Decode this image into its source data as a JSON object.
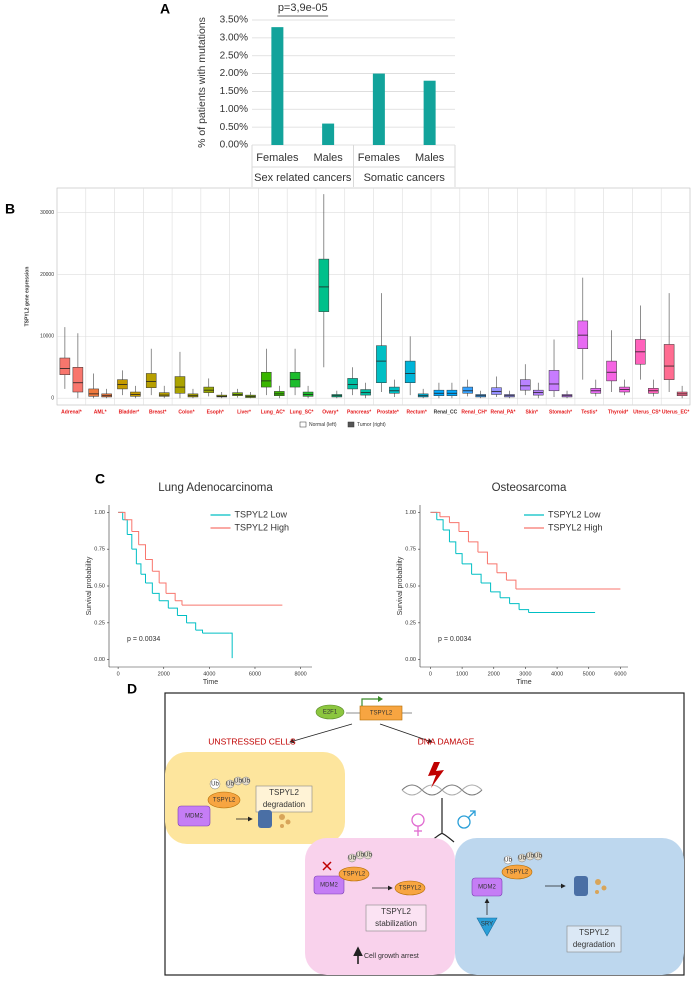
{
  "chart_data": [
    {
      "type": "bar",
      "panel": "A",
      "y_label": "% of patients with mutations",
      "categories": [
        "Females",
        "Males",
        "Females",
        "Males"
      ],
      "groups": [
        "Sex related cancers",
        "Somatic cancers"
      ],
      "values": [
        3.3,
        0.6,
        2.0,
        1.8
      ],
      "color": "#12a39b",
      "annotation": "p=3,9e-05",
      "ylim": [
        0,
        3.5
      ],
      "yticks": [
        {
          "value": 0,
          "label": "0.00%"
        },
        {
          "value": 0.5,
          "label": "0.50%"
        },
        {
          "value": 1,
          "label": "1.00%"
        },
        {
          "value": 1.5,
          "label": "1.50%"
        },
        {
          "value": 2,
          "label": "2.00%"
        },
        {
          "value": 2.5,
          "label": "2.50%"
        },
        {
          "value": 3,
          "label": "3.00%"
        },
        {
          "value": 3.5,
          "label": "3.50%"
        }
      ],
      "grid": true
    },
    {
      "type": "box",
      "panel": "B",
      "y_label": "TSPYL2 gene expression",
      "categories": [
        "Adrenal*",
        "AML*",
        "Bladder*",
        "Breast*",
        "Colon*",
        "Esoph*",
        "Liver*",
        "Lung_AC*",
        "Lung_SC*",
        "Ovary*",
        "Pancreas*",
        "Prostate*",
        "Rectum*",
        "Renal_CC",
        "Renal_CH*",
        "Renal_PA*",
        "Skin*",
        "Stomach*",
        "Testis*",
        "Thyroid*",
        "Uterus_CS*",
        "Uterus_EC*"
      ],
      "colors": [
        "#f8766d",
        "#f07b3f",
        "#c49a00",
        "#b79f00",
        "#aba300",
        "#99a800",
        "#7cae00",
        "#39b600",
        "#1cbd2c",
        "#00c08b",
        "#00bfa3",
        "#00bfc4",
        "#00b4d8",
        "#00a9ff",
        "#35a2ff",
        "#9590ff",
        "#b983ff",
        "#c77cff",
        "#e76bf3",
        "#f564e3",
        "#ff62bc",
        "#ff6c91"
      ],
      "label_colors": [
        "#e41a1c",
        "#e41a1c",
        "#e41a1c",
        "#e41a1c",
        "#e41a1c",
        "#e41a1c",
        "#e41a1c",
        "#e41a1c",
        "#e41a1c",
        "#e41a1c",
        "#e41a1c",
        "#e41a1c",
        "#e41a1c",
        "#333333",
        "#e41a1c",
        "#e41a1c",
        "#e41a1c",
        "#e41a1c",
        "#e41a1c",
        "#e41a1c",
        "#e41a1c",
        "#e41a1c"
      ],
      "series": [
        {
          "name": "Normal (left)",
          "values": [
            [
              1500,
              3800,
              4800,
              6500,
              11500
            ],
            [
              0,
              300,
              700,
              1500,
              4000
            ],
            [
              500,
              1500,
              2200,
              3000,
              4500
            ],
            [
              500,
              1700,
              2700,
              4000,
              8000
            ],
            [
              0,
              800,
              1800,
              3500,
              7500
            ],
            [
              300,
              900,
              1300,
              1800,
              3200
            ],
            [
              100,
              400,
              600,
              900,
              1500
            ],
            [
              500,
              1800,
              2800,
              4200,
              8000
            ],
            [
              500,
              1800,
              3000,
              4200,
              8000
            ],
            [
              5000,
              14000,
              18000,
              22500,
              33000
            ],
            [
              500,
              1500,
              2200,
              3200,
              5000
            ],
            [
              1000,
              2500,
              6000,
              8500,
              17000
            ],
            [
              500,
              2500,
              4000,
              6000,
              10000
            ],
            [
              0,
              400,
              800,
              1300,
              2500
            ],
            [
              300,
              800,
              1200,
              1800,
              3000
            ],
            [
              200,
              600,
              1100,
              1700,
              3500
            ],
            [
              500,
              1300,
              2000,
              3000,
              5500
            ],
            [
              200,
              1200,
              2300,
              4500,
              9500
            ],
            [
              3000,
              8000,
              10200,
              12500,
              19500
            ],
            [
              1000,
              2800,
              4200,
              6000,
              11000
            ],
            [
              3000,
              5500,
              7500,
              9500,
              15000
            ],
            [
              1000,
              3000,
              5200,
              8700,
              17000
            ]
          ]
        },
        {
          "name": "Tumor (right)",
          "values": [
            [
              0,
              1000,
              2500,
              5000,
              10500
            ],
            [
              0,
              200,
              400,
              700,
              1500
            ],
            [
              0,
              300,
              600,
              1000,
              2000
            ],
            [
              0,
              300,
              500,
              900,
              2000
            ],
            [
              0,
              200,
              400,
              700,
              1500
            ],
            [
              0,
              200,
              300,
              500,
              1000
            ],
            [
              0,
              100,
              300,
              500,
              1000
            ],
            [
              0,
              400,
              700,
              1100,
              2000
            ],
            [
              0,
              300,
              600,
              1000,
              2000
            ],
            [
              0,
              200,
              400,
              600,
              1200
            ],
            [
              0,
              500,
              900,
              1400,
              2500
            ],
            [
              200,
              800,
              1200,
              1800,
              3000
            ],
            [
              0,
              200,
              400,
              700,
              1500
            ],
            [
              0,
              400,
              800,
              1300,
              2500
            ],
            [
              0,
              200,
              400,
              600,
              1200
            ],
            [
              0,
              200,
              400,
              600,
              1200
            ],
            [
              0,
              500,
              900,
              1300,
              2500
            ],
            [
              0,
              200,
              400,
              600,
              1200
            ],
            [
              300,
              800,
              1200,
              1600,
              3000
            ],
            [
              500,
              1000,
              1400,
              1800,
              3000
            ],
            [
              300,
              800,
              1200,
              1600,
              3000
            ],
            [
              0,
              400,
              700,
              1000,
              2000
            ]
          ]
        }
      ],
      "ylim": [
        -1100,
        34000
      ],
      "yticks": [
        0,
        10000,
        20000,
        30000
      ],
      "grid": true
    },
    {
      "type": "survival",
      "panel": "C",
      "title": "Lung Adenocarcinoma",
      "x_label": "Time",
      "y_label": "Survival probability",
      "annotation": "p = 0.0034",
      "series": [
        {
          "name": "TSPYL2 Low",
          "color": "#00bfc4",
          "x": [
            0,
            200,
            400,
            600,
            800,
            1000,
            1200,
            1500,
            1800,
            2200,
            2600,
            3000,
            3400,
            3700,
            4900,
            5000
          ],
          "values": [
            1,
            0.95,
            0.85,
            0.75,
            0.65,
            0.58,
            0.52,
            0.45,
            0.4,
            0.35,
            0.3,
            0.25,
            0.2,
            0.18,
            0.18,
            0.01
          ]
        },
        {
          "name": "TSPYL2 High",
          "color": "#f8766d",
          "x": [
            0,
            300,
            600,
            900,
            1200,
            1500,
            1800,
            2100,
            2500,
            2800,
            7200
          ],
          "values": [
            1,
            0.95,
            0.87,
            0.78,
            0.68,
            0.6,
            0.52,
            0.45,
            0.4,
            0.37,
            0.37
          ]
        }
      ],
      "xlim": [
        -400,
        8500
      ],
      "xticks": [
        0,
        2000,
        4000,
        6000,
        8000
      ],
      "ylim": [
        -0.05,
        1.05
      ],
      "yticks": [
        {
          "value": 0,
          "label": "0.00"
        },
        {
          "value": 0.25,
          "label": "0.25"
        },
        {
          "value": 0.5,
          "label": "0.50"
        },
        {
          "value": 0.75,
          "label": "0.75"
        },
        {
          "value": 1,
          "label": "1.00"
        }
      ]
    },
    {
      "type": "survival",
      "title": "Osteosarcoma",
      "x_label": "Time",
      "y_label": "Survival probability",
      "annotation": "p = 0.0034",
      "series": [
        {
          "name": "TSPYL2 Low",
          "color": "#00bfc4",
          "x": [
            0,
            200,
            400,
            600,
            800,
            1000,
            1300,
            1600,
            1900,
            2200,
            2500,
            2800,
            3100,
            5200
          ],
          "values": [
            1,
            0.95,
            0.88,
            0.8,
            0.72,
            0.65,
            0.58,
            0.52,
            0.46,
            0.42,
            0.38,
            0.34,
            0.32,
            0.32
          ]
        },
        {
          "name": "TSPYL2 High",
          "color": "#f8766d",
          "x": [
            0,
            300,
            600,
            900,
            1200,
            1500,
            1800,
            2100,
            2400,
            2700,
            6000
          ],
          "values": [
            1,
            0.97,
            0.93,
            0.87,
            0.8,
            0.73,
            0.65,
            0.59,
            0.54,
            0.48,
            0.48
          ]
        }
      ],
      "xlim": [
        -330,
        6240
      ],
      "xticks": [
        0,
        1000,
        2000,
        3000,
        4000,
        5000,
        6000
      ],
      "ylim": [
        -0.05,
        1.05
      ],
      "yticks": [
        {
          "value": 0,
          "label": "0.00"
        },
        {
          "value": 0.25,
          "label": "0.25"
        },
        {
          "value": 0.5,
          "label": "0.50"
        },
        {
          "value": 0.75,
          "label": "0.75"
        },
        {
          "value": 1,
          "label": "1.00"
        }
      ]
    }
  ],
  "diagram": {
    "panel": "D",
    "e2f1": "E2F1",
    "gene": "TSPYL2",
    "unstressed": "UNSTRESSED CELLS",
    "dna_damage": "DNA DAMAGE",
    "ub": "Ub",
    "protein": "TSPYL2",
    "mdm2": "MDM2",
    "degradation": [
      "TSPYL2",
      "degradation"
    ],
    "stabilization": [
      "TSPYL2",
      "stabilization"
    ],
    "arrest": "Cell growth arrest",
    "sry": "SRY"
  }
}
